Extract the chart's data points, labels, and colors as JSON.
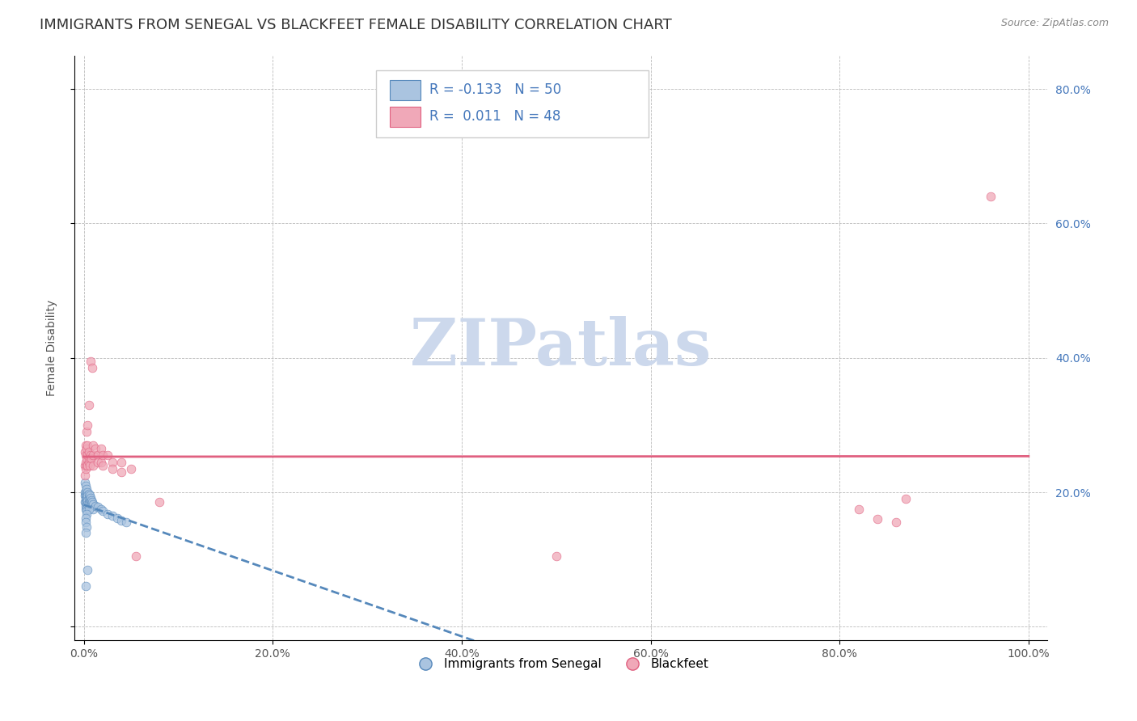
{
  "title": "IMMIGRANTS FROM SENEGAL VS BLACKFEET FEMALE DISABILITY CORRELATION CHART",
  "source": "Source: ZipAtlas.com",
  "ylabel": "Female Disability",
  "legend_blue_label": "Immigrants from Senegal",
  "legend_pink_label": "Blackfeet",
  "R_blue": -0.133,
  "N_blue": 50,
  "R_pink": 0.011,
  "N_pink": 48,
  "blue_color": "#aac4e0",
  "pink_color": "#f0a8b8",
  "blue_line_color": "#5588bb",
  "pink_line_color": "#e06080",
  "blue_scatter": [
    [
      0.001,
      0.215
    ],
    [
      0.001,
      0.2
    ],
    [
      0.001,
      0.195
    ],
    [
      0.001,
      0.185
    ],
    [
      0.002,
      0.21
    ],
    [
      0.002,
      0.2
    ],
    [
      0.002,
      0.195
    ],
    [
      0.002,
      0.19
    ],
    [
      0.002,
      0.185
    ],
    [
      0.002,
      0.18
    ],
    [
      0.002,
      0.175
    ],
    [
      0.003,
      0.205
    ],
    [
      0.003,
      0.195
    ],
    [
      0.003,
      0.19
    ],
    [
      0.003,
      0.185
    ],
    [
      0.003,
      0.178
    ],
    [
      0.003,
      0.172
    ],
    [
      0.004,
      0.2
    ],
    [
      0.004,
      0.195
    ],
    [
      0.004,
      0.188
    ],
    [
      0.004,
      0.182
    ],
    [
      0.005,
      0.198
    ],
    [
      0.005,
      0.19
    ],
    [
      0.005,
      0.183
    ],
    [
      0.006,
      0.195
    ],
    [
      0.006,
      0.188
    ],
    [
      0.007,
      0.192
    ],
    [
      0.007,
      0.185
    ],
    [
      0.008,
      0.188
    ],
    [
      0.008,
      0.182
    ],
    [
      0.009,
      0.185
    ],
    [
      0.01,
      0.182
    ],
    [
      0.01,
      0.175
    ],
    [
      0.012,
      0.18
    ],
    [
      0.015,
      0.178
    ],
    [
      0.018,
      0.175
    ],
    [
      0.02,
      0.172
    ],
    [
      0.025,
      0.168
    ],
    [
      0.03,
      0.165
    ],
    [
      0.035,
      0.162
    ],
    [
      0.04,
      0.158
    ],
    [
      0.045,
      0.155
    ],
    [
      0.005,
      0.175
    ],
    [
      0.003,
      0.168
    ],
    [
      0.002,
      0.162
    ],
    [
      0.002,
      0.155
    ],
    [
      0.003,
      0.148
    ],
    [
      0.002,
      0.14
    ],
    [
      0.004,
      0.085
    ],
    [
      0.002,
      0.06
    ]
  ],
  "pink_scatter": [
    [
      0.001,
      0.24
    ],
    [
      0.001,
      0.225
    ],
    [
      0.001,
      0.26
    ],
    [
      0.002,
      0.255
    ],
    [
      0.002,
      0.27
    ],
    [
      0.002,
      0.245
    ],
    [
      0.002,
      0.235
    ],
    [
      0.003,
      0.29
    ],
    [
      0.003,
      0.265
    ],
    [
      0.003,
      0.25
    ],
    [
      0.003,
      0.24
    ],
    [
      0.004,
      0.3
    ],
    [
      0.004,
      0.27
    ],
    [
      0.004,
      0.255
    ],
    [
      0.004,
      0.24
    ],
    [
      0.005,
      0.33
    ],
    [
      0.005,
      0.26
    ],
    [
      0.005,
      0.245
    ],
    [
      0.006,
      0.25
    ],
    [
      0.006,
      0.24
    ],
    [
      0.007,
      0.395
    ],
    [
      0.007,
      0.255
    ],
    [
      0.008,
      0.25
    ],
    [
      0.009,
      0.385
    ],
    [
      0.01,
      0.27
    ],
    [
      0.01,
      0.255
    ],
    [
      0.01,
      0.24
    ],
    [
      0.012,
      0.265
    ],
    [
      0.015,
      0.255
    ],
    [
      0.015,
      0.245
    ],
    [
      0.018,
      0.265
    ],
    [
      0.018,
      0.245
    ],
    [
      0.02,
      0.255
    ],
    [
      0.02,
      0.24
    ],
    [
      0.025,
      0.255
    ],
    [
      0.03,
      0.245
    ],
    [
      0.03,
      0.235
    ],
    [
      0.04,
      0.245
    ],
    [
      0.04,
      0.23
    ],
    [
      0.05,
      0.235
    ],
    [
      0.055,
      0.105
    ],
    [
      0.08,
      0.185
    ],
    [
      0.5,
      0.105
    ],
    [
      0.82,
      0.175
    ],
    [
      0.84,
      0.16
    ],
    [
      0.86,
      0.155
    ],
    [
      0.87,
      0.19
    ],
    [
      0.96,
      0.64
    ]
  ],
  "xlim": [
    -0.01,
    1.02
  ],
  "ylim": [
    -0.02,
    0.85
  ],
  "xticks": [
    0.0,
    0.2,
    0.4,
    0.6,
    0.8,
    1.0
  ],
  "xtick_labels": [
    "0.0%",
    "20.0%",
    "40.0%",
    "60.0%",
    "80.0%",
    "100.0%"
  ],
  "yticks": [
    0.0,
    0.2,
    0.4,
    0.6,
    0.8
  ],
  "ytick_labels_left": [
    "",
    "",
    "",
    "",
    ""
  ],
  "ytick_labels_right": [
    "",
    "20.0%",
    "40.0%",
    "60.0%",
    "80.0%"
  ],
  "grid_color": "#bbbbbb",
  "background_color": "#ffffff",
  "title_fontsize": 13,
  "axis_label_fontsize": 10,
  "tick_fontsize": 10,
  "legend_fontsize": 13,
  "watermark_color": "#ccd8ec",
  "marker_size": 60
}
